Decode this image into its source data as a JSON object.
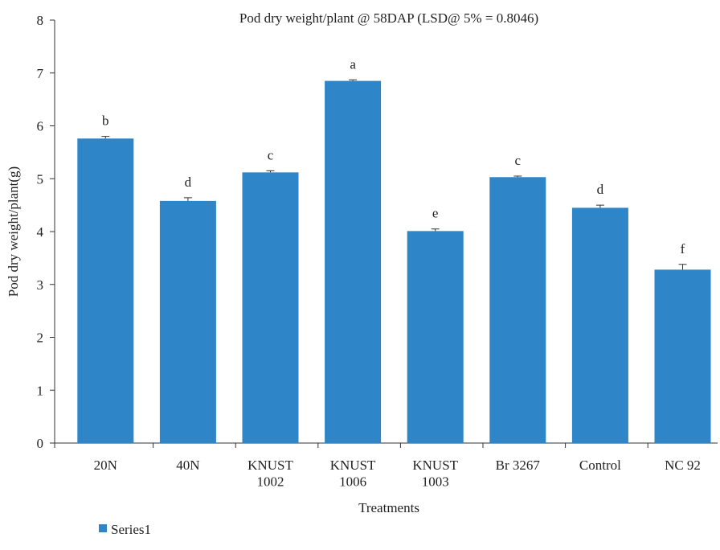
{
  "chart_data": {
    "type": "bar",
    "title": "Pod dry weight/plant @ 58DAP (LSD@ 5% = 0.8046)",
    "x_label": "Treatments",
    "y_label": "Pod dry weight/plant(g)",
    "categories": [
      "20N",
      "40N",
      "KNUST\n1002",
      "KNUST\n1006",
      "KNUST\n1003",
      "Br 3267",
      "Control",
      "NC 92"
    ],
    "series": [
      {
        "name": "Series1",
        "color": "#2e86c8",
        "values": [
          5.76,
          4.58,
          5.12,
          6.85,
          4.01,
          5.03,
          4.45,
          3.28
        ],
        "errors": [
          0.04,
          0.06,
          0.03,
          0.02,
          0.04,
          0.02,
          0.05,
          0.1
        ]
      }
    ],
    "annotations": [
      "b",
      "d",
      "c",
      "a",
      "e",
      "c",
      "d",
      "f"
    ],
    "ylim": [
      0,
      8
    ],
    "yticks": [
      0,
      1,
      2,
      3,
      4,
      5,
      6,
      7,
      8
    ],
    "legend": "bottom-left"
  }
}
